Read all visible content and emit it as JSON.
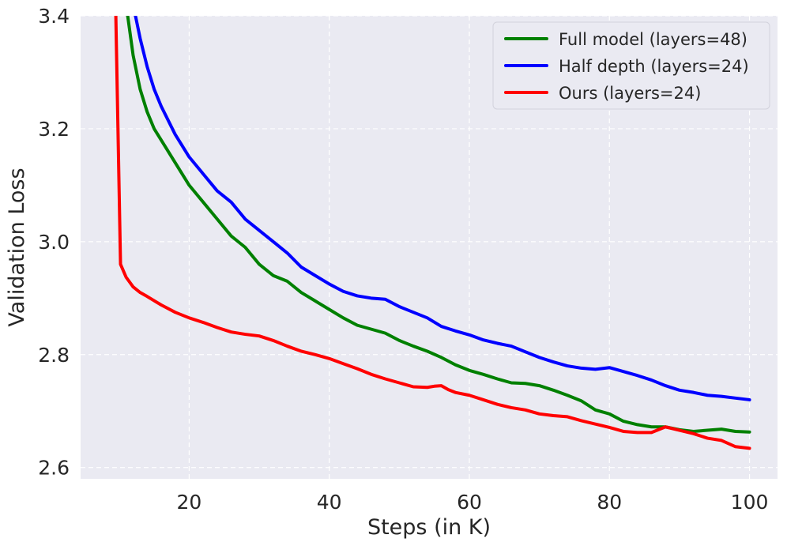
{
  "chart_data": {
    "type": "line",
    "title": "",
    "xlabel": "Steps (in K)",
    "ylabel": "Validation Loss",
    "xlim": [
      4.5,
      104
    ],
    "ylim": [
      2.58,
      3.4
    ],
    "xticks": [
      20,
      40,
      60,
      80,
      100
    ],
    "xtick_labels": [
      "20",
      "40",
      "60",
      "80",
      "100"
    ],
    "yticks": [
      2.6,
      2.8,
      3.0,
      3.2,
      3.4
    ],
    "ytick_labels": [
      "2.6",
      "2.8",
      "3.0",
      "3.2",
      "3.4"
    ],
    "grid": true,
    "legend_position": "top-right",
    "series": [
      {
        "name": "Full model (layers=48)",
        "color": "#008000",
        "x": [
          11,
          12,
          13,
          14,
          15,
          16,
          18,
          20,
          22,
          24,
          26,
          28,
          30,
          32,
          34,
          36,
          38,
          40,
          42,
          44,
          46,
          48,
          50,
          52,
          54,
          56,
          58,
          60,
          62,
          64,
          66,
          68,
          70,
          72,
          74,
          76,
          78,
          80,
          82,
          84,
          86,
          88,
          90,
          92,
          94,
          96,
          98,
          100
        ],
        "y": [
          3.42,
          3.33,
          3.27,
          3.23,
          3.2,
          3.18,
          3.14,
          3.1,
          3.07,
          3.04,
          3.01,
          2.99,
          2.96,
          2.94,
          2.93,
          2.91,
          2.895,
          2.88,
          2.865,
          2.852,
          2.845,
          2.838,
          2.825,
          2.815,
          2.806,
          2.795,
          2.782,
          2.772,
          2.765,
          2.757,
          2.75,
          2.749,
          2.745,
          2.737,
          2.728,
          2.718,
          2.702,
          2.695,
          2.682,
          2.676,
          2.672,
          2.672,
          2.667,
          2.664,
          2.666,
          2.668,
          2.664,
          2.663
        ]
      },
      {
        "name": "Half depth (layers=24)",
        "color": "#0000ff",
        "x": [
          12,
          13,
          14,
          15,
          16,
          18,
          20,
          22,
          24,
          26,
          28,
          30,
          32,
          34,
          36,
          38,
          40,
          42,
          44,
          46,
          48,
          50,
          52,
          54,
          56,
          58,
          60,
          62,
          64,
          66,
          68,
          70,
          72,
          74,
          76,
          78,
          80,
          82,
          84,
          86,
          88,
          90,
          92,
          94,
          96,
          98,
          100
        ],
        "y": [
          3.42,
          3.36,
          3.31,
          3.27,
          3.24,
          3.19,
          3.15,
          3.12,
          3.09,
          3.07,
          3.04,
          3.02,
          3.0,
          2.98,
          2.955,
          2.94,
          2.925,
          2.912,
          2.904,
          2.9,
          2.898,
          2.885,
          2.875,
          2.865,
          2.85,
          2.842,
          2.835,
          2.826,
          2.82,
          2.815,
          2.805,
          2.795,
          2.787,
          2.78,
          2.776,
          2.774,
          2.777,
          2.77,
          2.763,
          2.755,
          2.745,
          2.737,
          2.733,
          2.728,
          2.726,
          2.723,
          2.72
        ]
      },
      {
        "name": "Ours (layers=24)",
        "color": "#ff0000",
        "x": [
          9.5,
          10.2,
          11,
          12,
          13,
          14,
          16,
          18,
          20,
          22,
          24,
          26,
          28,
          30,
          32,
          34,
          36,
          38,
          40,
          42,
          44,
          46,
          48,
          50,
          52,
          54,
          55,
          56,
          57,
          58,
          60,
          62,
          64,
          66,
          68,
          70,
          72,
          74,
          76,
          78,
          80,
          82,
          84,
          86,
          88,
          90,
          92,
          94,
          96,
          98,
          100
        ],
        "y": [
          3.42,
          2.96,
          2.937,
          2.92,
          2.91,
          2.903,
          2.888,
          2.875,
          2.865,
          2.857,
          2.848,
          2.84,
          2.836,
          2.833,
          2.825,
          2.815,
          2.806,
          2.8,
          2.793,
          2.784,
          2.775,
          2.765,
          2.757,
          2.75,
          2.743,
          2.742,
          2.744,
          2.745,
          2.738,
          2.733,
          2.728,
          2.72,
          2.712,
          2.706,
          2.702,
          2.695,
          2.692,
          2.69,
          2.683,
          2.677,
          2.671,
          2.664,
          2.662,
          2.662,
          2.672,
          2.666,
          2.66,
          2.652,
          2.648,
          2.637,
          2.634
        ]
      }
    ]
  }
}
